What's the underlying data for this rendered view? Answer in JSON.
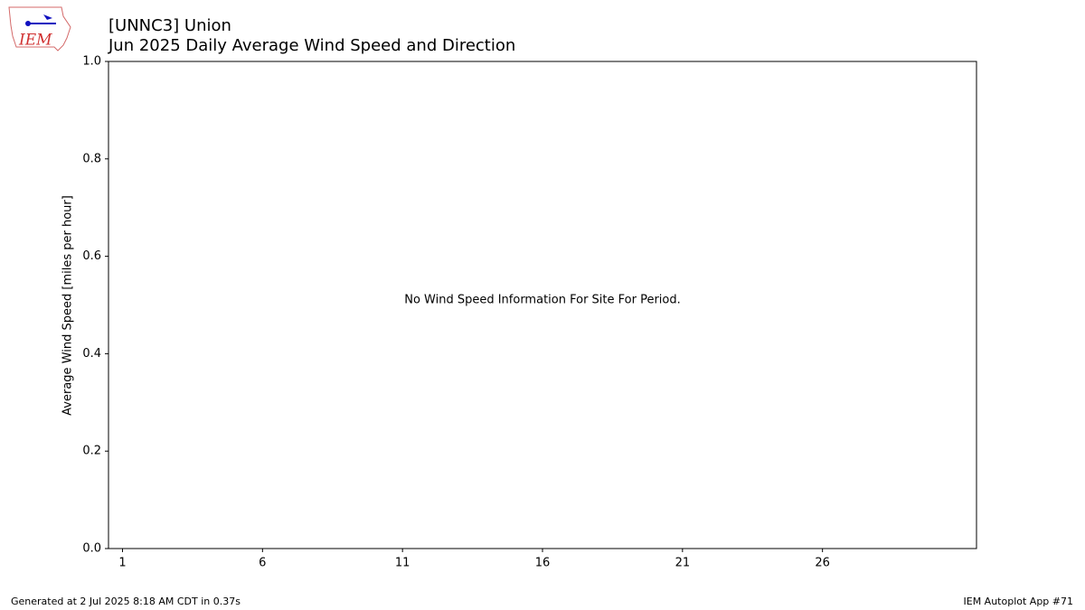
{
  "chart_data": {
    "type": "line",
    "title": "[UNNC3] Union",
    "subtitle": "Jun 2025 Daily Average Wind Speed and Direction",
    "y_label": "Average Wind Speed [miles per hour]",
    "annotation": "No Wind Speed Information For Site For Period.",
    "xlim": [
      0.5,
      31.5
    ],
    "xticks": [
      1,
      6,
      11,
      16,
      21,
      26
    ],
    "ylim": [
      0,
      1
    ],
    "yticks": [
      {
        "value": 0,
        "label": "0.0"
      },
      {
        "value": 0.2,
        "label": "0.2"
      },
      {
        "value": 0.4,
        "label": "0.4"
      },
      {
        "value": 0.6,
        "label": "0.6"
      },
      {
        "value": 0.8,
        "label": "0.8"
      },
      {
        "value": 1,
        "label": "1.0"
      }
    ],
    "series": [],
    "logo_text": "IEM",
    "footer_left": "Generated at 2 Jul 2025 8:18 AM CDT in 0.37s",
    "footer_right": "IEM Autoplot App #71"
  }
}
